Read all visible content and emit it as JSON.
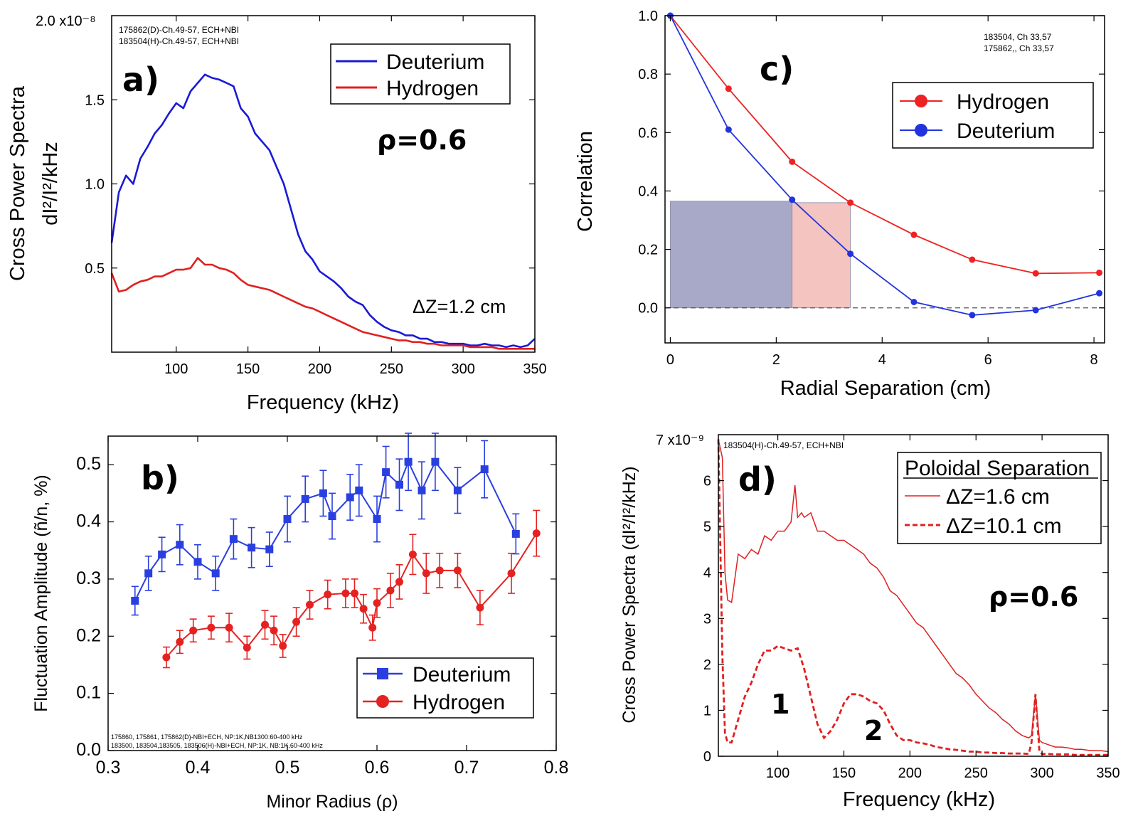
{
  "chart_data": [
    {
      "id": "a",
      "type": "line",
      "panel_label": "a)",
      "xlabel": "Frequency (kHz)",
      "ylabel": "Cross Power Spectra",
      "ylabel2": "dI²/I²/kHz",
      "y_axis_top_label": "2.0 x10⁻⁸",
      "xlim": [
        55,
        350
      ],
      "ylim": [
        0,
        2.0
      ],
      "xticks": [
        100,
        150,
        200,
        250,
        300,
        350
      ],
      "yticks": [
        0.5,
        1.0,
        1.5
      ],
      "ytick_labels": [
        "0.5",
        "1.0",
        "1.5"
      ],
      "annotations": [
        "175862(D)-Ch.49-57,  ECH+NBI",
        "183504(H)-Ch.49-57, ECH+NBI"
      ],
      "rho_text": "ρ=0.6",
      "dz_text": "ΔZ=1.2 cm",
      "series": [
        {
          "name": "Deuterium",
          "color": "#1a1ad6",
          "x": [
            55,
            60,
            65,
            70,
            75,
            80,
            85,
            90,
            95,
            100,
            105,
            110,
            115,
            120,
            125,
            130,
            135,
            140,
            145,
            150,
            155,
            160,
            165,
            170,
            175,
            180,
            185,
            190,
            195,
            200,
            205,
            210,
            215,
            220,
            225,
            230,
            235,
            240,
            245,
            250,
            255,
            260,
            265,
            270,
            275,
            280,
            285,
            290,
            295,
            300,
            305,
            310,
            315,
            320,
            325,
            330,
            335,
            340,
            345,
            350
          ],
          "y": [
            0.65,
            0.95,
            1.05,
            1.0,
            1.15,
            1.22,
            1.3,
            1.35,
            1.42,
            1.48,
            1.45,
            1.55,
            1.6,
            1.65,
            1.63,
            1.62,
            1.6,
            1.58,
            1.45,
            1.4,
            1.3,
            1.25,
            1.2,
            1.1,
            1.0,
            0.85,
            0.7,
            0.6,
            0.55,
            0.48,
            0.45,
            0.42,
            0.38,
            0.33,
            0.3,
            0.28,
            0.22,
            0.18,
            0.15,
            0.13,
            0.12,
            0.1,
            0.1,
            0.08,
            0.08,
            0.06,
            0.06,
            0.05,
            0.05,
            0.05,
            0.04,
            0.04,
            0.05,
            0.04,
            0.04,
            0.03,
            0.04,
            0.03,
            0.04,
            0.08
          ]
        },
        {
          "name": "Hydrogen",
          "color": "#e02020",
          "x": [
            55,
            60,
            65,
            70,
            75,
            80,
            85,
            90,
            95,
            100,
            105,
            110,
            115,
            120,
            125,
            130,
            135,
            140,
            145,
            150,
            155,
            160,
            165,
            170,
            175,
            180,
            185,
            190,
            195,
            200,
            205,
            210,
            215,
            220,
            225,
            230,
            235,
            240,
            245,
            250,
            255,
            260,
            265,
            270,
            275,
            280,
            285,
            290,
            295,
            300,
            305,
            310,
            315,
            320,
            325,
            330,
            335,
            340,
            345,
            350
          ],
          "y": [
            0.47,
            0.36,
            0.37,
            0.4,
            0.42,
            0.43,
            0.45,
            0.45,
            0.47,
            0.49,
            0.49,
            0.5,
            0.56,
            0.52,
            0.52,
            0.5,
            0.49,
            0.47,
            0.43,
            0.4,
            0.39,
            0.38,
            0.37,
            0.35,
            0.33,
            0.31,
            0.29,
            0.27,
            0.26,
            0.24,
            0.22,
            0.2,
            0.18,
            0.16,
            0.14,
            0.12,
            0.11,
            0.1,
            0.09,
            0.08,
            0.07,
            0.07,
            0.06,
            0.06,
            0.05,
            0.05,
            0.04,
            0.04,
            0.04,
            0.04,
            0.03,
            0.03,
            0.03,
            0.03,
            0.02,
            0.02,
            0.02,
            0.02,
            0.02,
            0.02
          ]
        }
      ]
    },
    {
      "id": "b",
      "type": "line",
      "panel_label": "b)",
      "xlabel": "Minor Radius (ρ)",
      "ylabel": "Fluctuation Amplitude (ñ/n, %)",
      "xlim": [
        0.3,
        0.8
      ],
      "ylim": [
        0.0,
        0.55
      ],
      "xticks": [
        0.3,
        0.4,
        0.5,
        0.6,
        0.7,
        0.8
      ],
      "xtick_labels": [
        "0.3",
        "0.4",
        "0.5",
        "0.6",
        "0.7",
        "0.8"
      ],
      "yticks": [
        0.0,
        0.1,
        0.2,
        0.3,
        0.4,
        0.5
      ],
      "ytick_labels": [
        "0.0",
        "0.1",
        "0.2",
        "0.3",
        "0.4",
        "0.5"
      ],
      "annotations": [
        "175860, 175861, 175862(D)-NBI+ECH, NP:1K,NB1300:60-400 kHz",
        "183500, 183504,183505, 183506(H)-NBI+ECH, NP:1K, NB:1K,60-400 kHz"
      ],
      "series": [
        {
          "name": "Deuterium",
          "color": "#2a3fe0",
          "marker": "square",
          "x": [
            0.33,
            0.345,
            0.36,
            0.38,
            0.4,
            0.42,
            0.44,
            0.46,
            0.48,
            0.5,
            0.52,
            0.54,
            0.55,
            0.57,
            0.58,
            0.6,
            0.61,
            0.625,
            0.635,
            0.65,
            0.665,
            0.69,
            0.72,
            0.755
          ],
          "y": [
            0.262,
            0.31,
            0.343,
            0.36,
            0.33,
            0.31,
            0.37,
            0.355,
            0.352,
            0.405,
            0.44,
            0.45,
            0.41,
            0.443,
            0.455,
            0.405,
            0.487,
            0.465,
            0.505,
            0.455,
            0.505,
            0.455,
            0.492,
            0.379
          ],
          "err": [
            0.025,
            0.03,
            0.03,
            0.035,
            0.03,
            0.03,
            0.035,
            0.035,
            0.03,
            0.04,
            0.04,
            0.04,
            0.04,
            0.04,
            0.045,
            0.04,
            0.045,
            0.045,
            0.05,
            0.05,
            0.05,
            0.04,
            0.05,
            0.035
          ]
        },
        {
          "name": "Hydrogen",
          "color": "#e52222",
          "marker": "circle",
          "x": [
            0.365,
            0.38,
            0.395,
            0.415,
            0.435,
            0.455,
            0.475,
            0.485,
            0.495,
            0.51,
            0.525,
            0.545,
            0.565,
            0.575,
            0.585,
            0.595,
            0.6,
            0.615,
            0.625,
            0.64,
            0.655,
            0.67,
            0.69,
            0.715,
            0.75,
            0.778
          ],
          "y": [
            0.163,
            0.19,
            0.21,
            0.215,
            0.215,
            0.18,
            0.22,
            0.21,
            0.183,
            0.225,
            0.255,
            0.273,
            0.275,
            0.275,
            0.248,
            0.215,
            0.258,
            0.28,
            0.295,
            0.343,
            0.31,
            0.315,
            0.315,
            0.25,
            0.31,
            0.38
          ],
          "err": [
            0.018,
            0.02,
            0.02,
            0.02,
            0.025,
            0.02,
            0.025,
            0.025,
            0.02,
            0.025,
            0.025,
            0.025,
            0.025,
            0.025,
            0.025,
            0.022,
            0.025,
            0.03,
            0.03,
            0.035,
            0.035,
            0.03,
            0.03,
            0.03,
            0.035,
            0.04
          ]
        }
      ]
    },
    {
      "id": "c",
      "type": "line",
      "panel_label": "c)",
      "xlabel": "Radial Separation (cm)",
      "ylabel": "Correlation",
      "xlim": [
        -0.1,
        8.2
      ],
      "ylim": [
        -0.12,
        1.0
      ],
      "xticks": [
        0,
        2,
        4,
        6,
        8
      ],
      "yticks": [
        0.0,
        0.2,
        0.4,
        0.6,
        0.8,
        1.0
      ],
      "ytick_labels": [
        "0.0",
        "0.2",
        "0.4",
        "0.6",
        "0.8",
        "1.0"
      ],
      "annotations": [
        "183504, Ch 33,57",
        "175862,, Ch 33,57"
      ],
      "zero_line": true,
      "series": [
        {
          "name": "Hydrogen",
          "color": "#ee2222",
          "x": [
            0,
            1.1,
            2.3,
            3.4,
            4.6,
            5.7,
            6.9,
            8.1
          ],
          "y": [
            1.0,
            0.75,
            0.5,
            0.36,
            0.25,
            0.165,
            0.118,
            0.12
          ]
        },
        {
          "name": "Deuterium",
          "color": "#2233dd",
          "x": [
            0,
            1.1,
            2.3,
            3.4,
            4.6,
            5.7,
            6.9,
            8.1
          ],
          "y": [
            1.0,
            0.61,
            0.37,
            0.185,
            0.02,
            -0.025,
            -0.008,
            0.05
          ]
        }
      ],
      "shaded_regions": [
        {
          "x0": 0,
          "x1": 2.3,
          "y0": 0,
          "y1": 0.365,
          "color": "#a8a8c8"
        },
        {
          "x0": 2.3,
          "x1": 3.4,
          "y0": 0,
          "y1": 0.36,
          "color": "#f4c4c0"
        }
      ]
    },
    {
      "id": "d",
      "type": "line",
      "panel_label": "d)",
      "xlabel": "Frequency (kHz)",
      "ylabel": "Cross Power Spectra (dI²/I²/kHz)",
      "y_axis_top_label": "7 x10⁻⁹",
      "xlim": [
        55,
        350
      ],
      "ylim": [
        0,
        7
      ],
      "xticks": [
        100,
        150,
        200,
        250,
        300,
        350
      ],
      "yticks": [
        0,
        1,
        2,
        3,
        4,
        5,
        6
      ],
      "annotations": [
        "183504(H)-Ch.49-57, ECH+NBI"
      ],
      "legend_title": "Poloidal Separation",
      "rho_text": "ρ=0.6",
      "peak_labels": [
        "1",
        "2"
      ],
      "series": [
        {
          "name": "ΔZ=1.6 cm",
          "color": "#e02020",
          "style": "solid",
          "x": [
            55,
            58,
            60,
            62,
            65,
            70,
            75,
            80,
            85,
            90,
            95,
            100,
            105,
            110,
            113,
            115,
            118,
            120,
            125,
            130,
            135,
            140,
            145,
            150,
            155,
            160,
            165,
            170,
            175,
            180,
            185,
            190,
            195,
            200,
            205,
            210,
            215,
            220,
            225,
            230,
            235,
            240,
            245,
            250,
            255,
            260,
            265,
            270,
            275,
            280,
            285,
            290,
            292,
            295,
            298,
            300,
            305,
            310,
            315,
            320,
            325,
            330,
            335,
            340,
            345,
            350
          ],
          "y": [
            6.9,
            6.5,
            4.0,
            3.4,
            3.35,
            4.4,
            4.3,
            4.5,
            4.4,
            4.8,
            4.7,
            4.9,
            4.9,
            5.1,
            5.9,
            5.2,
            5.3,
            5.2,
            5.3,
            4.9,
            4.9,
            4.8,
            4.7,
            4.7,
            4.6,
            4.5,
            4.4,
            4.2,
            4.1,
            3.9,
            3.6,
            3.5,
            3.3,
            3.1,
            2.9,
            2.8,
            2.6,
            2.4,
            2.2,
            2.0,
            1.8,
            1.7,
            1.55,
            1.35,
            1.2,
            1.05,
            0.95,
            0.8,
            0.7,
            0.55,
            0.45,
            0.4,
            0.45,
            1.35,
            0.35,
            0.3,
            0.25,
            0.2,
            0.2,
            0.18,
            0.15,
            0.15,
            0.13,
            0.12,
            0.12,
            0.1
          ]
        },
        {
          "name": "ΔZ=10.1 cm",
          "color": "#e02020",
          "style": "dashed",
          "x": [
            55,
            58,
            60,
            62,
            65,
            70,
            75,
            80,
            85,
            90,
            95,
            100,
            105,
            110,
            115,
            120,
            125,
            130,
            135,
            140,
            145,
            150,
            155,
            160,
            165,
            170,
            175,
            180,
            185,
            190,
            195,
            200,
            205,
            210,
            215,
            220,
            225,
            230,
            235,
            240,
            245,
            250,
            255,
            260,
            265,
            270,
            275,
            280,
            285,
            290,
            292,
            295,
            298,
            300,
            305,
            310,
            315,
            320,
            325,
            330,
            335,
            340,
            345,
            350
          ],
          "y": [
            6.9,
            2.2,
            0.5,
            0.3,
            0.3,
            0.8,
            1.3,
            1.6,
            2.0,
            2.3,
            2.3,
            2.4,
            2.35,
            2.3,
            2.35,
            1.9,
            1.3,
            0.7,
            0.4,
            0.55,
            0.8,
            1.15,
            1.35,
            1.35,
            1.3,
            1.2,
            1.15,
            1.0,
            0.7,
            0.45,
            0.35,
            0.35,
            0.3,
            0.28,
            0.25,
            0.2,
            0.18,
            0.15,
            0.14,
            0.12,
            0.1,
            0.1,
            0.08,
            0.08,
            0.07,
            0.07,
            0.06,
            0.06,
            0.06,
            0.05,
            0.3,
            1.35,
            0.1,
            0.05,
            0.05,
            0.04,
            0.04,
            0.04,
            0.03,
            0.03,
            0.03,
            0.03,
            0.03,
            0.03
          ]
        }
      ]
    }
  ]
}
